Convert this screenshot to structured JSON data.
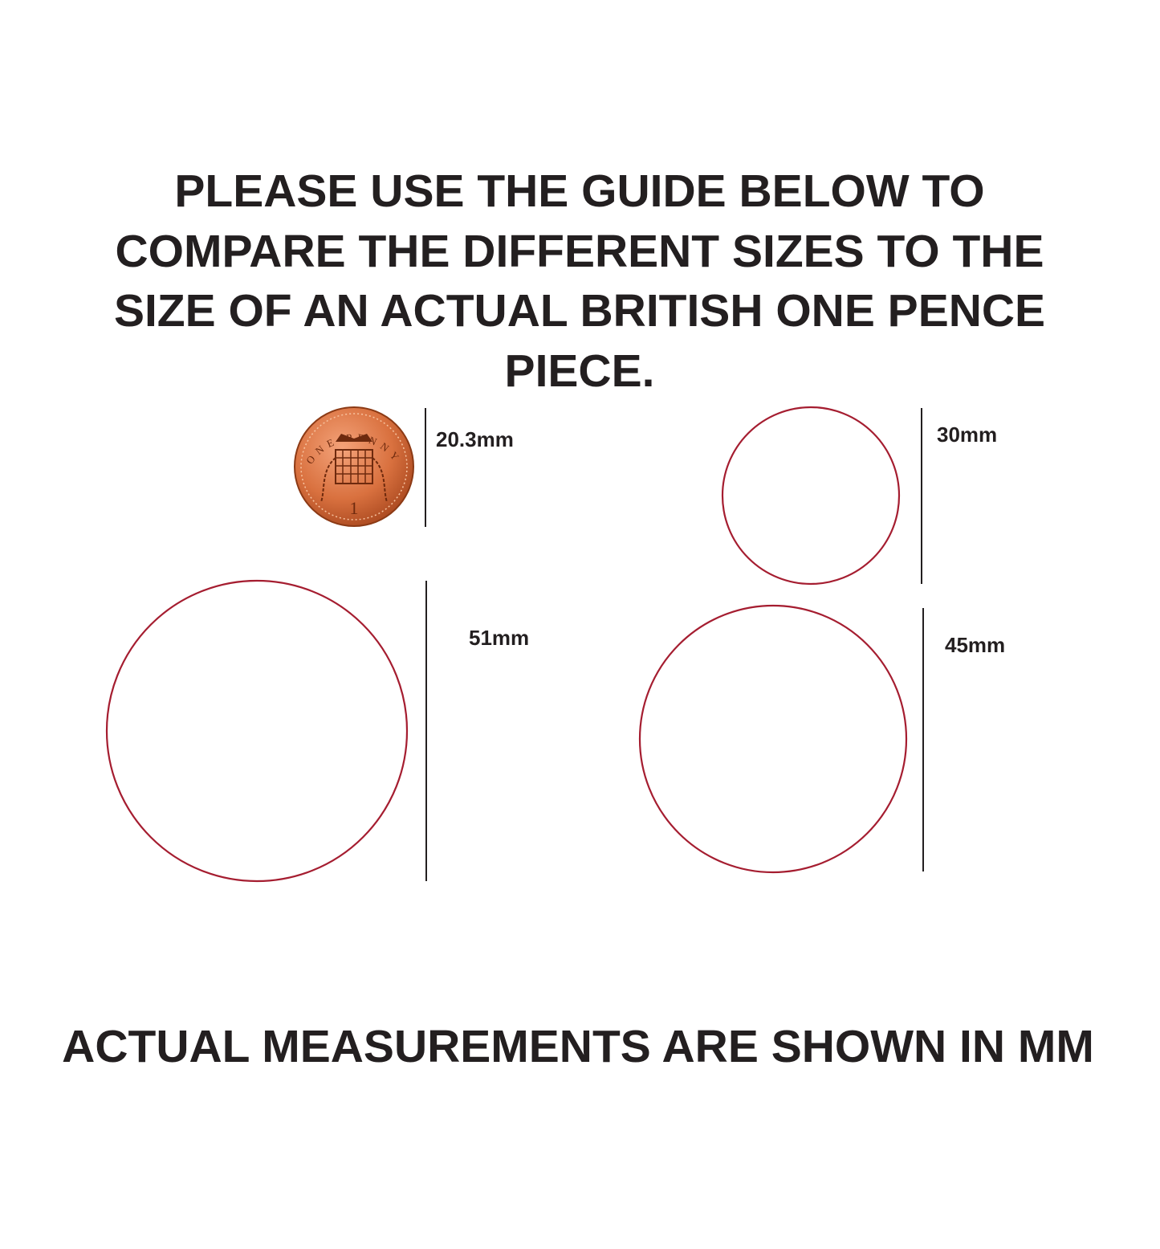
{
  "header": {
    "lines": [
      "PLEASE USE THE GUIDE BELOW TO",
      "COMPARE THE DIFFERENT SIZES TO THE",
      "SIZE OF AN ACTUAL BRITISH ONE PENCE",
      "PIECE."
    ]
  },
  "coin": {
    "inscription": "ONE PENNY",
    "denomination": "1"
  },
  "sizes": [
    {
      "label": "20.3mm"
    },
    {
      "label": "30mm"
    },
    {
      "label": "51mm"
    },
    {
      "label": "45mm"
    }
  ],
  "footer": {
    "text": "ACTUAL MEASUREMENTS ARE SHOWN IN MM"
  }
}
